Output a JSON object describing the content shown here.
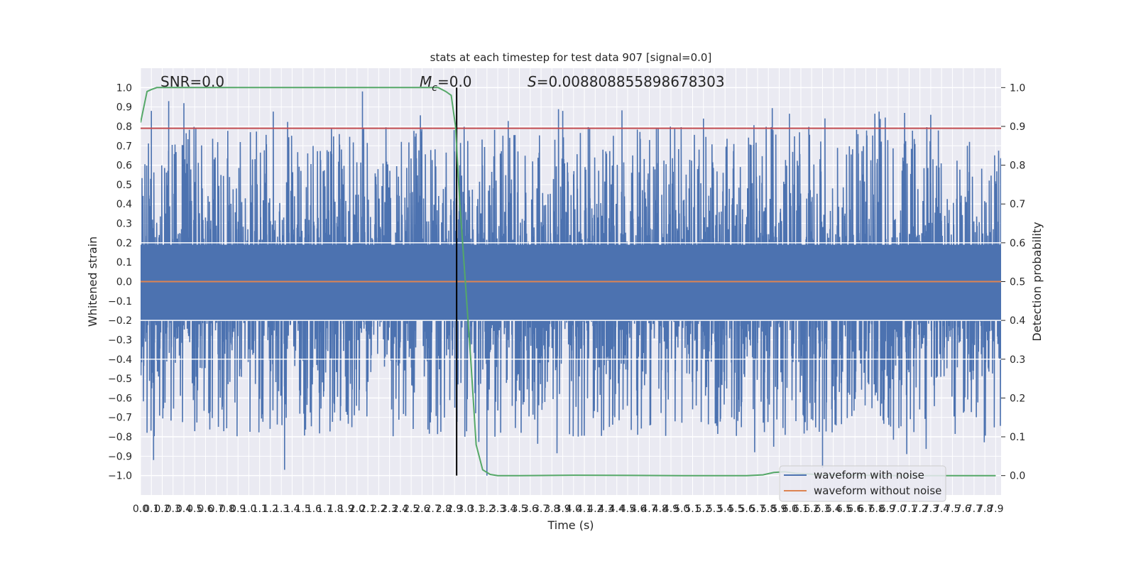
{
  "chart_data": {
    "type": "line",
    "title": "stats at each timestep for test data 907 [signal=0.0]",
    "xlabel": "Time (s)",
    "ylabel": "Whitened strain",
    "y2label": "Detection probability",
    "xlim": [
      0.0,
      7.95
    ],
    "ylim": [
      -1.1,
      1.1
    ],
    "y2lim": [
      -0.05,
      1.05
    ],
    "grid": true,
    "legend_position": "lower-right",
    "annotations": {
      "snr": "SNR=0.0",
      "mc_symbol": "M",
      "mc_sub": "c",
      "mc_value": "=0.0",
      "s_symbol": "S",
      "s_value": "=0.008808855898678303"
    },
    "x_ticks": [
      0.0,
      0.1,
      0.2,
      0.3,
      0.4,
      0.5,
      0.6,
      0.7,
      0.8,
      0.9,
      1.0,
      1.1,
      1.2,
      1.3,
      1.4,
      1.5,
      1.6,
      1.7,
      1.8,
      1.9,
      2.0,
      2.1,
      2.2,
      2.3,
      2.4,
      2.5,
      2.6,
      2.7,
      2.8,
      2.9,
      3.0,
      3.1,
      3.2,
      3.3,
      3.4,
      3.5,
      3.6,
      3.7,
      3.8,
      3.9,
      4.0,
      4.1,
      4.2,
      4.3,
      4.4,
      4.5,
      4.6,
      4.7,
      4.8,
      4.9,
      5.0,
      5.1,
      5.2,
      5.3,
      5.4,
      5.5,
      5.6,
      5.7,
      5.8,
      5.9,
      6.0,
      6.1,
      6.2,
      6.3,
      6.4,
      6.5,
      6.6,
      6.7,
      6.8,
      6.9,
      7.0,
      7.1,
      7.2,
      7.3,
      7.4,
      7.5,
      7.6,
      7.7,
      7.8,
      7.9
    ],
    "x_tick_labels": [
      "0.0",
      "0.1",
      "0.2",
      "0.3",
      "0.4",
      "0.5",
      "0.6",
      "0.7",
      "0.8",
      "0.9",
      "1.0",
      "1.1",
      "1.2",
      "1.3",
      "1.4",
      "1.5",
      "1.6",
      "1.7",
      "1.8",
      "1.9",
      "2.0",
      "2.1",
      "2.2",
      "2.3",
      "2.4",
      "2.5",
      "2.6",
      "2.7",
      "2.8",
      "2.9",
      "3.0",
      "3.1",
      "3.2",
      "3.3",
      "3.4",
      "3.5",
      "3.6",
      "3.7",
      "3.8",
      "3.9",
      "4.0",
      "4.1",
      "4.2",
      "4.3",
      "4.4",
      "4.5",
      "4.6",
      "4.7",
      "4.8",
      "4.9",
      "5.0",
      "5.1",
      "5.2",
      "5.3",
      "5.4",
      "5.5",
      "5.6",
      "5.7",
      "5.8",
      "5.9",
      "6.0",
      "6.1",
      "6.2",
      "6.3",
      "6.4",
      "6.5",
      "6.6",
      "6.7",
      "6.8",
      "6.9",
      "7.0",
      "7.1",
      "7.2",
      "7.3",
      "7.4",
      "7.5",
      "7.6",
      "7.7",
      "7.8",
      "7.9"
    ],
    "y_ticks": [
      1.0,
      0.9,
      0.8,
      0.7,
      0.6,
      0.5,
      0.4,
      0.3,
      0.2,
      0.1,
      0.0,
      -0.1,
      -0.2,
      -0.3,
      -0.4,
      -0.5,
      -0.6,
      -0.7,
      -0.8,
      -0.9,
      -1.0
    ],
    "y_tick_labels": [
      "1.0",
      "0.9",
      "0.8",
      "0.7",
      "0.6",
      "0.5",
      "0.4",
      "0.3",
      "0.2",
      "0.1",
      "0.0",
      "−0.1",
      "−0.2",
      "−0.3",
      "−0.4",
      "−0.5",
      "−0.6",
      "−0.7",
      "−0.8",
      "−0.9",
      "−1.0"
    ],
    "y2_ticks": [
      1.0,
      0.9,
      0.8,
      0.7,
      0.6,
      0.5,
      0.4,
      0.3,
      0.2,
      0.1,
      0.0
    ],
    "y2_tick_labels": [
      "1.0",
      "0.9",
      "0.8",
      "0.7",
      "0.6",
      "0.5",
      "0.4",
      "0.3",
      "0.2",
      "0.1",
      "0.0"
    ],
    "series": [
      {
        "name": "waveform with noise",
        "axis": "left",
        "color": "#4c72b0",
        "kind": "noise",
        "x_range": [
          0.0,
          7.95
        ],
        "approx_envelope": [
          -0.97,
          0.98
        ],
        "notable_spikes": [
          {
            "x": 0.1,
            "y": 0.88
          },
          {
            "x": 0.26,
            "y": 0.93
          },
          {
            "x": 0.4,
            "y": 0.92
          },
          {
            "x": 2.05,
            "y": 0.98
          },
          {
            "x": 0.12,
            "y": -0.92
          },
          {
            "x": 1.33,
            "y": -0.97
          },
          {
            "x": 3.2,
            "y": -1.0
          },
          {
            "x": 6.3,
            "y": -0.96
          },
          {
            "x": 3.9,
            "y": 0.88
          },
          {
            "x": 5.2,
            "y": 0.84
          },
          {
            "x": 7.3,
            "y": 0.86
          }
        ]
      },
      {
        "name": "waveform without noise",
        "axis": "left",
        "color": "#dd8452",
        "x": [
          0.0,
          7.95
        ],
        "y": [
          0.0,
          0.0
        ]
      },
      {
        "name": "",
        "axis": "right",
        "color": "#55a868",
        "x": [
          0.0,
          0.06,
          0.1,
          0.15,
          0.2,
          0.3,
          0.5,
          1.0,
          1.5,
          2.0,
          2.5,
          2.75,
          2.82,
          2.87,
          2.91,
          2.95,
          3.0,
          3.05,
          3.1,
          3.16,
          3.23,
          3.3,
          3.5,
          4.0,
          5.0,
          5.6,
          5.75,
          5.85,
          5.95,
          6.05,
          6.3,
          7.0,
          7.9
        ],
        "y": [
          0.91,
          0.99,
          0.995,
          1.0,
          1.0,
          1.0,
          1.0,
          1.0,
          1.0,
          1.0,
          1.0,
          1.0,
          0.99,
          0.98,
          0.9,
          0.7,
          0.5,
          0.3,
          0.08,
          0.015,
          0.003,
          0.0,
          0.0,
          0.001,
          0.0,
          0.0,
          0.002,
          0.008,
          0.01,
          0.006,
          0.002,
          0.0,
          0.0
        ]
      }
    ],
    "hlines": [
      {
        "axis": "left",
        "y": 0.79,
        "color": "#c44e52"
      }
    ],
    "vlines": [
      {
        "axis": "left",
        "x": 2.92,
        "ymin": -1.0,
        "ymax": 1.0,
        "color": "#000000"
      }
    ],
    "colors": {
      "plot_bg": "#eaeaf2",
      "grid": "#ffffff",
      "noise": "#4c72b0",
      "clean": "#dd8452",
      "prob": "#55a868",
      "threshold": "#c44e52",
      "marker": "#000000"
    }
  }
}
